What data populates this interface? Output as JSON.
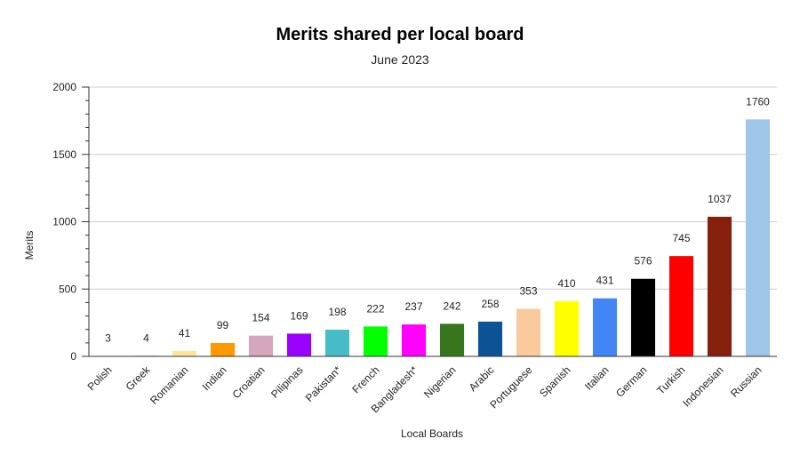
{
  "chart_data": {
    "type": "bar",
    "title": "Merits shared per local board",
    "subtitle": "June 2023",
    "xlabel": "Local Boards",
    "ylabel": "Merits",
    "ylim": [
      0,
      2000
    ],
    "yticks": [
      0,
      500,
      1000,
      1500,
      2000
    ],
    "grid": true,
    "categories": [
      "Polish",
      "Greek",
      "Romanian",
      "Indian",
      "Croatian",
      "Pilipinas",
      "Pakistan*",
      "French",
      "Bangladesh*",
      "Nigerian",
      "Arabic",
      "Portuguese",
      "Spanish",
      "Italian",
      "German",
      "Turkish",
      "Indonesian",
      "Russian"
    ],
    "values": [
      3,
      4,
      41,
      99,
      154,
      169,
      198,
      222,
      237,
      242,
      258,
      353,
      410,
      431,
      576,
      745,
      1037,
      1760
    ],
    "colors": [
      "#000000",
      "#5b7bd5",
      "#ffe599",
      "#ff9900",
      "#d5a6bd",
      "#9900ff",
      "#46bdc6",
      "#00ff00",
      "#ff00ff",
      "#38761d",
      "#0b5394",
      "#f9cb9c",
      "#ffff00",
      "#4285f4",
      "#000000",
      "#ff0000",
      "#85200c",
      "#9fc5e8"
    ]
  }
}
